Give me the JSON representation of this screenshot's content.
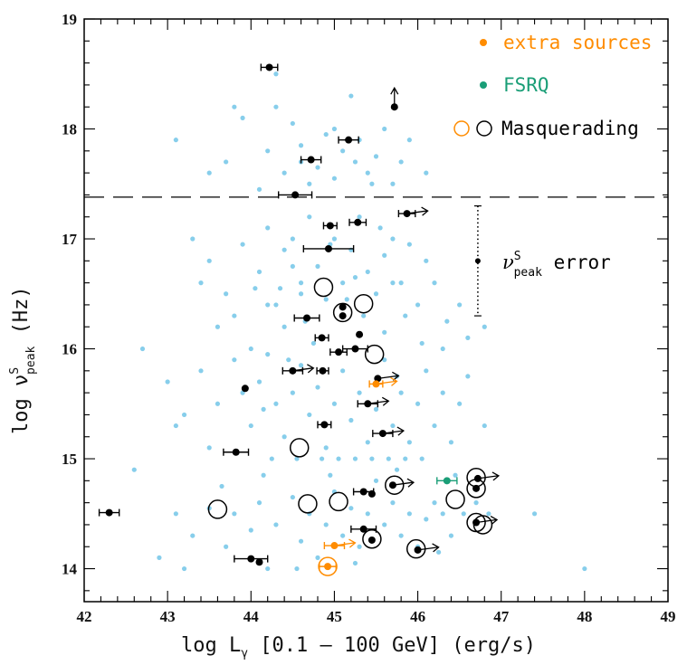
{
  "chart_data": {
    "type": "scatter",
    "xlim": [
      42,
      49
    ],
    "ylim": [
      13.7,
      19
    ],
    "x_ticks": [
      "42",
      "43",
      "44",
      "45",
      "46",
      "47",
      "48",
      "49"
    ],
    "y_ticks": [
      "14",
      "15",
      "16",
      "17",
      "18",
      "19"
    ],
    "xlabel": {
      "prefix": "log L",
      "sub": "γ",
      "suffix": " [0.1 – 100 GeV] (erg/s)"
    },
    "ylabel": {
      "prefix": "log ν",
      "sup": "S",
      "sub": "peak",
      "suffix": " (Hz)"
    },
    "threshold_y": 17.38,
    "legend": {
      "extra_sources": "extra sources",
      "fsrq": "FSRQ",
      "masquerading": "Masquerading"
    },
    "error_indicator": {
      "label_prefix": "ν",
      "label_sup": "S",
      "label_sub": "peak",
      "label_suffix": " error",
      "x": 46.72,
      "y_center": 16.8,
      "y_half_range": 0.5
    },
    "colors": {
      "background_population": "#87ceeb",
      "main_sample": "#000000",
      "extra_sources": "#ff8c00",
      "fsrq": "#1a9e77",
      "masquerading": "#000000"
    },
    "series": [
      {
        "name": "background",
        "color": "#87ceeb",
        "points": [
          [
            43.1,
            17.9
          ],
          [
            43.5,
            17.6
          ],
          [
            43.8,
            18.2
          ],
          [
            43.9,
            18.1
          ],
          [
            44.2,
            17.8
          ],
          [
            44.3,
            18.2
          ],
          [
            44.5,
            18.05
          ],
          [
            44.6,
            17.7
          ],
          [
            44.7,
            17.5
          ],
          [
            44.9,
            17.95
          ],
          [
            45.0,
            18.0
          ],
          [
            45.1,
            17.8
          ],
          [
            45.2,
            18.3
          ],
          [
            45.3,
            17.9
          ],
          [
            45.4,
            17.6
          ],
          [
            45.5,
            17.75
          ],
          [
            45.6,
            18.0
          ],
          [
            45.7,
            17.5
          ],
          [
            45.8,
            17.7
          ],
          [
            45.9,
            17.9
          ],
          [
            46.1,
            17.6
          ],
          [
            44.4,
            17.6
          ],
          [
            44.8,
            17.65
          ],
          [
            45.0,
            17.55
          ],
          [
            45.25,
            17.7
          ],
          [
            44.6,
            17.85
          ],
          [
            45.45,
            17.5
          ],
          [
            44.1,
            17.45
          ],
          [
            43.7,
            17.7
          ],
          [
            44.3,
            18.5
          ],
          [
            43.3,
            17.0
          ],
          [
            43.5,
            16.8
          ],
          [
            43.7,
            16.5
          ],
          [
            43.9,
            16.95
          ],
          [
            44.1,
            16.7
          ],
          [
            44.2,
            17.1
          ],
          [
            44.3,
            16.4
          ],
          [
            44.4,
            16.9
          ],
          [
            44.5,
            17.0
          ],
          [
            44.6,
            16.6
          ],
          [
            44.7,
            17.2
          ],
          [
            44.8,
            16.75
          ],
          [
            44.9,
            16.45
          ],
          [
            45.0,
            17.0
          ],
          [
            45.1,
            16.6
          ],
          [
            45.2,
            16.9
          ],
          [
            45.3,
            17.2
          ],
          [
            45.4,
            16.7
          ],
          [
            45.5,
            16.5
          ],
          [
            45.6,
            16.85
          ],
          [
            45.7,
            17.0
          ],
          [
            45.8,
            16.6
          ],
          [
            45.9,
            16.95
          ],
          [
            46.0,
            16.4
          ],
          [
            46.1,
            16.8
          ],
          [
            46.2,
            16.6
          ],
          [
            46.35,
            16.25
          ],
          [
            46.5,
            16.4
          ],
          [
            46.6,
            16.1
          ],
          [
            46.8,
            16.2
          ],
          [
            43.6,
            16.2
          ],
          [
            43.8,
            16.3
          ],
          [
            44.0,
            16.0
          ],
          [
            44.2,
            16.4
          ],
          [
            44.4,
            16.2
          ],
          [
            44.6,
            16.5
          ],
          [
            44.75,
            16.05
          ],
          [
            45.15,
            16.45
          ],
          [
            45.35,
            16.3
          ],
          [
            45.6,
            16.15
          ],
          [
            45.85,
            16.3
          ],
          [
            46.05,
            16.05
          ],
          [
            46.3,
            16.0
          ],
          [
            44.5,
            16.75
          ],
          [
            45.7,
            16.6
          ],
          [
            45.25,
            16.65
          ],
          [
            44.95,
            16.95
          ],
          [
            44.35,
            16.55
          ],
          [
            43.4,
            16.6
          ],
          [
            44.05,
            16.55
          ],
          [
            45.55,
            17.1
          ],
          [
            44.65,
            16.25
          ],
          [
            42.7,
            16.0
          ],
          [
            43.0,
            15.7
          ],
          [
            43.2,
            15.4
          ],
          [
            43.4,
            15.8
          ],
          [
            43.6,
            15.5
          ],
          [
            43.8,
            15.9
          ],
          [
            44.0,
            15.3
          ],
          [
            44.1,
            15.7
          ],
          [
            44.2,
            15.95
          ],
          [
            44.3,
            15.5
          ],
          [
            44.4,
            15.2
          ],
          [
            44.5,
            15.6
          ],
          [
            44.6,
            15.85
          ],
          [
            44.7,
            15.4
          ],
          [
            44.8,
            15.65
          ],
          [
            44.9,
            15.1
          ],
          [
            45.0,
            15.5
          ],
          [
            45.1,
            15.8
          ],
          [
            45.2,
            15.35
          ],
          [
            45.3,
            15.6
          ],
          [
            45.4,
            15.15
          ],
          [
            45.5,
            15.45
          ],
          [
            45.6,
            15.9
          ],
          [
            45.7,
            15.3
          ],
          [
            45.8,
            15.6
          ],
          [
            45.9,
            15.15
          ],
          [
            46.0,
            15.5
          ],
          [
            46.1,
            15.8
          ],
          [
            46.2,
            15.3
          ],
          [
            46.3,
            15.6
          ],
          [
            46.4,
            15.15
          ],
          [
            46.5,
            15.5
          ],
          [
            46.6,
            15.75
          ],
          [
            46.8,
            15.3
          ],
          [
            43.1,
            15.3
          ],
          [
            43.9,
            15.6
          ],
          [
            44.25,
            15.0
          ],
          [
            44.55,
            15.0
          ],
          [
            44.85,
            15.0
          ],
          [
            45.05,
            15.0
          ],
          [
            45.25,
            15.0
          ],
          [
            45.45,
            15.0
          ],
          [
            45.65,
            15.0
          ],
          [
            45.85,
            15.0
          ],
          [
            46.05,
            15.0
          ],
          [
            44.15,
            15.45
          ],
          [
            45.75,
            15.75
          ],
          [
            44.45,
            15.9
          ],
          [
            43.5,
            15.1
          ],
          [
            42.6,
            14.9
          ],
          [
            42.9,
            14.1
          ],
          [
            43.1,
            14.5
          ],
          [
            43.3,
            14.3
          ],
          [
            43.5,
            14.55
          ],
          [
            43.7,
            14.2
          ],
          [
            43.8,
            14.5
          ],
          [
            44.0,
            14.35
          ],
          [
            44.1,
            14.6
          ],
          [
            44.2,
            14.0
          ],
          [
            44.3,
            14.4
          ],
          [
            44.5,
            14.65
          ],
          [
            44.6,
            14.25
          ],
          [
            44.7,
            14.5
          ],
          [
            44.8,
            14.1
          ],
          [
            44.9,
            14.4
          ],
          [
            45.0,
            14.7
          ],
          [
            45.1,
            14.3
          ],
          [
            45.2,
            14.55
          ],
          [
            45.3,
            14.2
          ],
          [
            45.4,
            14.5
          ],
          [
            45.5,
            14.8
          ],
          [
            45.6,
            14.4
          ],
          [
            45.7,
            14.6
          ],
          [
            45.8,
            14.3
          ],
          [
            45.9,
            14.5
          ],
          [
            46.0,
            14.2
          ],
          [
            46.1,
            14.45
          ],
          [
            46.2,
            14.6
          ],
          [
            46.3,
            14.5
          ],
          [
            46.4,
            14.3
          ],
          [
            46.55,
            14.5
          ],
          [
            46.7,
            14.6
          ],
          [
            46.85,
            14.5
          ],
          [
            47.4,
            14.5
          ],
          [
            48.0,
            14.0
          ],
          [
            43.2,
            14.0
          ],
          [
            44.55,
            14.0
          ],
          [
            45.25,
            14.05
          ],
          [
            46.25,
            14.15
          ],
          [
            44.15,
            14.85
          ],
          [
            44.95,
            14.85
          ],
          [
            45.75,
            14.9
          ],
          [
            46.45,
            14.85
          ],
          [
            43.65,
            14.75
          ]
        ]
      },
      {
        "name": "main",
        "color": "#000000",
        "points": [
          {
            "x": 44.22,
            "y": 18.56,
            "xerr": 0.1
          },
          {
            "x": 45.72,
            "y": 18.2,
            "up": true
          },
          {
            "x": 45.17,
            "y": 17.9,
            "xerr": 0.12
          },
          {
            "x": 44.72,
            "y": 17.72,
            "xerr": 0.12
          },
          {
            "x": 44.53,
            "y": 17.4,
            "xerr": 0.2
          },
          {
            "x": 45.87,
            "y": 17.23,
            "xerr": 0.1,
            "right": true
          },
          {
            "x": 45.28,
            "y": 17.15,
            "xerr": 0.1
          },
          {
            "x": 44.95,
            "y": 17.12,
            "xerr": 0.08
          },
          {
            "x": 44.93,
            "y": 16.91,
            "xerr": 0.3
          },
          {
            "x": 45.1,
            "y": 16.38
          },
          {
            "x": 45.1,
            "y": 16.3
          },
          {
            "x": 44.67,
            "y": 16.28,
            "xerr": 0.15
          },
          {
            "x": 45.3,
            "y": 16.13
          },
          {
            "x": 44.85,
            "y": 16.1,
            "xerr": 0.08
          },
          {
            "x": 45.25,
            "y": 16.0,
            "xerr": 0.15
          },
          {
            "x": 45.05,
            "y": 15.97,
            "xerr": 0.1
          },
          {
            "x": 44.5,
            "y": 15.8,
            "xerr": 0.12,
            "right": true
          },
          {
            "x": 44.86,
            "y": 15.8,
            "xerr": 0.07
          },
          {
            "x": 45.52,
            "y": 15.73,
            "right": true
          },
          {
            "x": 43.93,
            "y": 15.64
          },
          {
            "x": 45.4,
            "y": 15.5,
            "xerr": 0.12,
            "right": true
          },
          {
            "x": 44.88,
            "y": 15.31,
            "xerr": 0.08
          },
          {
            "x": 45.58,
            "y": 15.23,
            "xerr": 0.12,
            "right": true
          },
          {
            "x": 43.82,
            "y": 15.06,
            "xerr": 0.15
          },
          {
            "x": 46.72,
            "y": 14.82,
            "right": true
          },
          {
            "x": 45.35,
            "y": 14.7,
            "xerr": 0.12
          },
          {
            "x": 45.7,
            "y": 14.76,
            "right": true
          },
          {
            "x": 45.45,
            "y": 14.68
          },
          {
            "x": 46.7,
            "y": 14.73
          },
          {
            "x": 46.7,
            "y": 14.42,
            "right": true
          },
          {
            "x": 42.3,
            "y": 14.51,
            "xerr": 0.12
          },
          {
            "x": 45.35,
            "y": 14.36,
            "xerr": 0.15
          },
          {
            "x": 45.45,
            "y": 14.26
          },
          {
            "x": 44.0,
            "y": 14.09,
            "xerr": 0.2
          },
          {
            "x": 44.1,
            "y": 14.06
          },
          {
            "x": 46.0,
            "y": 14.17,
            "right": true
          }
        ]
      },
      {
        "name": "extra sources",
        "color": "#ff8c00",
        "points": [
          {
            "x": 45.5,
            "y": 15.68,
            "xerr": 0.08,
            "right": true
          },
          {
            "x": 45.0,
            "y": 14.21,
            "xerr": 0.12,
            "right": true
          },
          {
            "x": 44.92,
            "y": 14.02,
            "xerr": 0.1
          }
        ]
      },
      {
        "name": "FSRQ",
        "color": "#1a9e77",
        "points": [
          {
            "x": 46.35,
            "y": 14.8,
            "xerr": 0.12
          }
        ]
      },
      {
        "name": "Masquerading",
        "color": "#000000",
        "points": [
          {
            "x": 44.87,
            "y": 16.56
          },
          {
            "x": 45.35,
            "y": 16.41
          },
          {
            "x": 45.1,
            "y": 16.33
          },
          {
            "x": 45.48,
            "y": 15.95
          },
          {
            "x": 44.58,
            "y": 15.1
          },
          {
            "x": 43.6,
            "y": 14.54
          },
          {
            "x": 44.68,
            "y": 14.59
          },
          {
            "x": 45.05,
            "y": 14.61
          },
          {
            "x": 45.72,
            "y": 14.76
          },
          {
            "x": 46.45,
            "y": 14.63
          },
          {
            "x": 46.7,
            "y": 14.83
          },
          {
            "x": 46.7,
            "y": 14.73
          },
          {
            "x": 46.7,
            "y": 14.42
          },
          {
            "x": 46.78,
            "y": 14.4
          },
          {
            "x": 45.45,
            "y": 14.27
          },
          {
            "x": 45.98,
            "y": 14.18
          }
        ]
      },
      {
        "name": "Masquerading (extra)",
        "color": "#ff8c00",
        "points": [
          {
            "x": 44.92,
            "y": 14.02
          }
        ]
      }
    ]
  }
}
